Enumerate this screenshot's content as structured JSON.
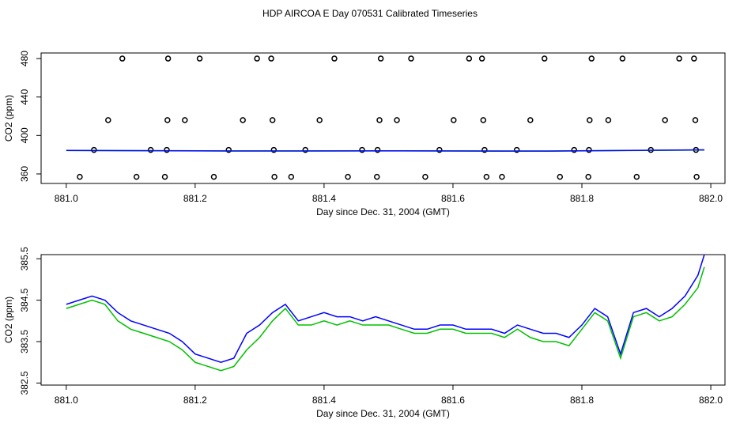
{
  "title": "HDP AIRCOA E  Day 070531  Calibrated Timeseries",
  "chart_data": [
    {
      "type": "scatter",
      "xlabel": "Day since Dec. 31, 2004 (GMT)",
      "ylabel": "CO2 (ppm)",
      "xlim": [
        880.961,
        882.022
      ],
      "ylim": [
        350.1,
        485.8
      ],
      "xticks": [
        {
          "value": 881.0,
          "label": "881.0"
        },
        {
          "value": 881.2,
          "label": "881.2"
        },
        {
          "value": 881.4,
          "label": "881.4"
        },
        {
          "value": 881.6,
          "label": "881.6"
        },
        {
          "value": 881.8,
          "label": "881.8"
        },
        {
          "value": 882.0,
          "label": "882.0"
        }
      ],
      "yticks": [
        360,
        400,
        440,
        480
      ],
      "series": [
        {
          "mode": "points",
          "color": "#000000",
          "x": [
            881.087,
            881.158,
            881.207,
            881.296,
            881.318,
            881.416,
            881.488,
            881.535,
            881.625,
            881.645,
            881.742,
            881.815,
            881.863,
            881.951,
            881.974,
            881.065,
            881.157,
            881.184,
            881.274,
            881.32,
            881.393,
            881.486,
            881.513,
            881.601,
            881.647,
            881.72,
            881.812,
            881.841,
            881.929,
            881.976,
            881.043,
            881.131,
            881.156,
            881.252,
            881.322,
            881.371,
            881.459,
            881.483,
            881.579,
            881.649,
            881.699,
            881.788,
            881.811,
            881.907,
            881.977,
            881.021,
            881.109,
            881.153,
            881.229,
            881.323,
            881.349,
            881.437,
            881.482,
            881.557,
            881.652,
            881.676,
            881.766,
            881.81,
            881.885,
            881.978
          ],
          "values": [
            480,
            480,
            480,
            480,
            480,
            480,
            480,
            480,
            480,
            480,
            480,
            480,
            480,
            480,
            480,
            416,
            416,
            416,
            416,
            416,
            416,
            416,
            416,
            416,
            416,
            416,
            416,
            416,
            416,
            416,
            385,
            385,
            385,
            385,
            385,
            385,
            385,
            385,
            385,
            385,
            385,
            385,
            385,
            385,
            385,
            357,
            357,
            357,
            357,
            357,
            357,
            357,
            357,
            357,
            357,
            357,
            357,
            357,
            357,
            357
          ]
        },
        {
          "mode": "line",
          "color": "#00c000",
          "x": [
            881.0,
            881.25,
            881.5,
            881.75,
            881.99
          ],
          "values": [
            384.3,
            383.8,
            383.9,
            383.7,
            384.9
          ]
        },
        {
          "mode": "line",
          "color": "#0000ff",
          "x": [
            881.0,
            881.25,
            881.5,
            881.75,
            881.99
          ],
          "values": [
            384.4,
            383.9,
            384.0,
            383.8,
            385.1
          ]
        }
      ]
    },
    {
      "type": "line",
      "xlabel": "Day since Dec. 31, 2004 (GMT)",
      "ylabel": "CO2 (ppm)",
      "xlim": [
        880.961,
        882.022
      ],
      "ylim": [
        382.45,
        385.6
      ],
      "xticks": [
        {
          "value": 881.0,
          "label": "881.0"
        },
        {
          "value": 881.2,
          "label": "881.2"
        },
        {
          "value": 881.4,
          "label": "881.4"
        },
        {
          "value": 881.6,
          "label": "881.6"
        },
        {
          "value": 881.8,
          "label": "881.8"
        },
        {
          "value": 882.0,
          "label": "882.0"
        }
      ],
      "yticks": [
        382.5,
        383.5,
        384.5,
        385.5
      ],
      "x": [
        881.0,
        881.02,
        881.04,
        881.06,
        881.08,
        881.1,
        881.12,
        881.14,
        881.16,
        881.18,
        881.2,
        881.22,
        881.24,
        881.26,
        881.28,
        881.3,
        881.32,
        881.34,
        881.36,
        881.38,
        881.4,
        881.42,
        881.44,
        881.46,
        881.48,
        881.5,
        881.52,
        881.54,
        881.56,
        881.58,
        881.6,
        881.62,
        881.64,
        881.66,
        881.68,
        881.7,
        881.72,
        881.74,
        881.76,
        881.78,
        881.8,
        881.82,
        881.84,
        881.86,
        881.88,
        881.9,
        881.92,
        881.94,
        881.96,
        881.98,
        881.99
      ],
      "series": [
        {
          "color": "#00c000",
          "values": [
            384.3,
            384.4,
            384.5,
            384.4,
            384.0,
            383.8,
            383.7,
            383.6,
            383.5,
            383.3,
            383.0,
            382.9,
            382.8,
            382.9,
            383.3,
            383.6,
            384.0,
            384.3,
            383.9,
            383.9,
            384.0,
            383.9,
            384.0,
            383.9,
            383.9,
            383.9,
            383.8,
            383.7,
            383.7,
            383.8,
            383.8,
            383.7,
            383.7,
            383.7,
            383.6,
            383.8,
            383.6,
            383.5,
            383.5,
            383.4,
            383.8,
            384.2,
            384.0,
            383.1,
            384.1,
            384.2,
            384.0,
            384.1,
            384.4,
            384.8,
            385.3
          ]
        },
        {
          "color": "#0000ff",
          "values": [
            384.4,
            384.5,
            384.6,
            384.5,
            384.2,
            384.0,
            383.9,
            383.8,
            383.7,
            383.5,
            383.2,
            383.1,
            383.0,
            383.1,
            383.7,
            383.9,
            384.2,
            384.4,
            384.0,
            384.1,
            384.2,
            384.1,
            384.1,
            384.0,
            384.1,
            384.0,
            383.9,
            383.8,
            383.8,
            383.9,
            383.9,
            383.8,
            383.8,
            383.8,
            383.7,
            383.9,
            383.8,
            383.7,
            383.7,
            383.6,
            383.9,
            384.3,
            384.1,
            383.2,
            384.2,
            384.3,
            384.1,
            384.3,
            384.6,
            385.1,
            385.6
          ]
        }
      ]
    }
  ]
}
